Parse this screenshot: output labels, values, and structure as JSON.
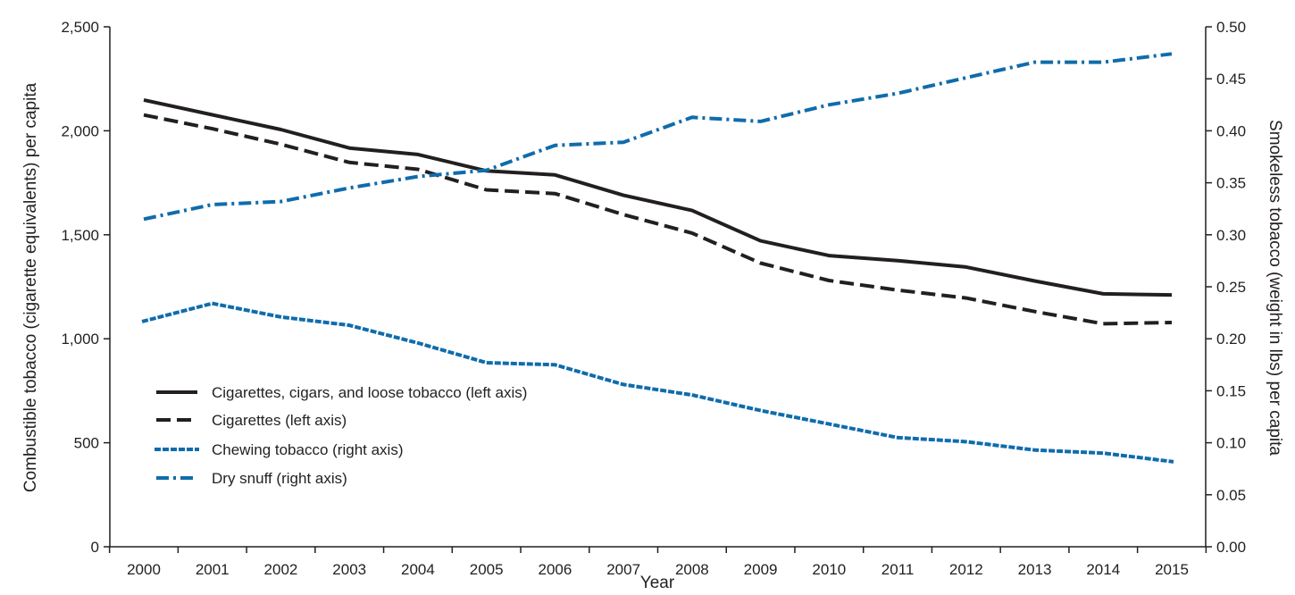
{
  "chart_data": {
    "type": "line",
    "x": [
      2000,
      2001,
      2002,
      2003,
      2004,
      2005,
      2006,
      2007,
      2008,
      2009,
      2010,
      2011,
      2012,
      2013,
      2014,
      2015
    ],
    "xlabel": "Year",
    "ylabel_left": "Combustible tobacco (cigarette equivalents) per capita",
    "ylabel_right": "Smokeless tobacco (weight in lbs) per capita",
    "ylim_left": [
      0,
      2500
    ],
    "ylim_right": [
      0,
      0.5
    ],
    "yticks_left": [
      "0",
      "500",
      "1,000",
      "1,500",
      "2,000",
      "2,500"
    ],
    "yticks_right": [
      "0.00",
      "0.05",
      "0.10",
      "0.15",
      "0.20",
      "0.25",
      "0.30",
      "0.35",
      "0.40",
      "0.45",
      "0.50"
    ],
    "grid": false,
    "legend_position": "bottom-left",
    "series": [
      {
        "name": "Cigarettes, cigars, and loose tobacco (left axis)",
        "axis": "left",
        "style": "solid",
        "color": "#231f20",
        "values": [
          2148,
          2077,
          2006,
          1917,
          1886,
          1807,
          1788,
          1690,
          1617,
          1471,
          1400,
          1376,
          1345,
          1278,
          1216,
          1211
        ]
      },
      {
        "name": "Cigarettes (left axis)",
        "axis": "left",
        "style": "dashed",
        "color": "#231f20",
        "values": [
          2076,
          2010,
          1935,
          1848,
          1815,
          1716,
          1698,
          1597,
          1508,
          1364,
          1280,
          1234,
          1196,
          1131,
          1072,
          1078
        ]
      },
      {
        "name": "Chewing tobacco (right axis)",
        "axis": "right",
        "style": "dotted",
        "color": "#0f6cac",
        "values": [
          0.217,
          0.234,
          0.221,
          0.213,
          0.196,
          0.177,
          0.175,
          0.156,
          0.146,
          0.131,
          0.118,
          0.105,
          0.101,
          0.093,
          0.09,
          0.082
        ]
      },
      {
        "name": "Dry snuff (right axis)",
        "axis": "right",
        "style": "dashdot",
        "color": "#0f6cac",
        "values": [
          0.315,
          0.329,
          0.332,
          0.345,
          0.356,
          0.362,
          0.386,
          0.389,
          0.413,
          0.409,
          0.425,
          0.436,
          0.451,
          0.466,
          0.466,
          0.474
        ]
      }
    ]
  }
}
